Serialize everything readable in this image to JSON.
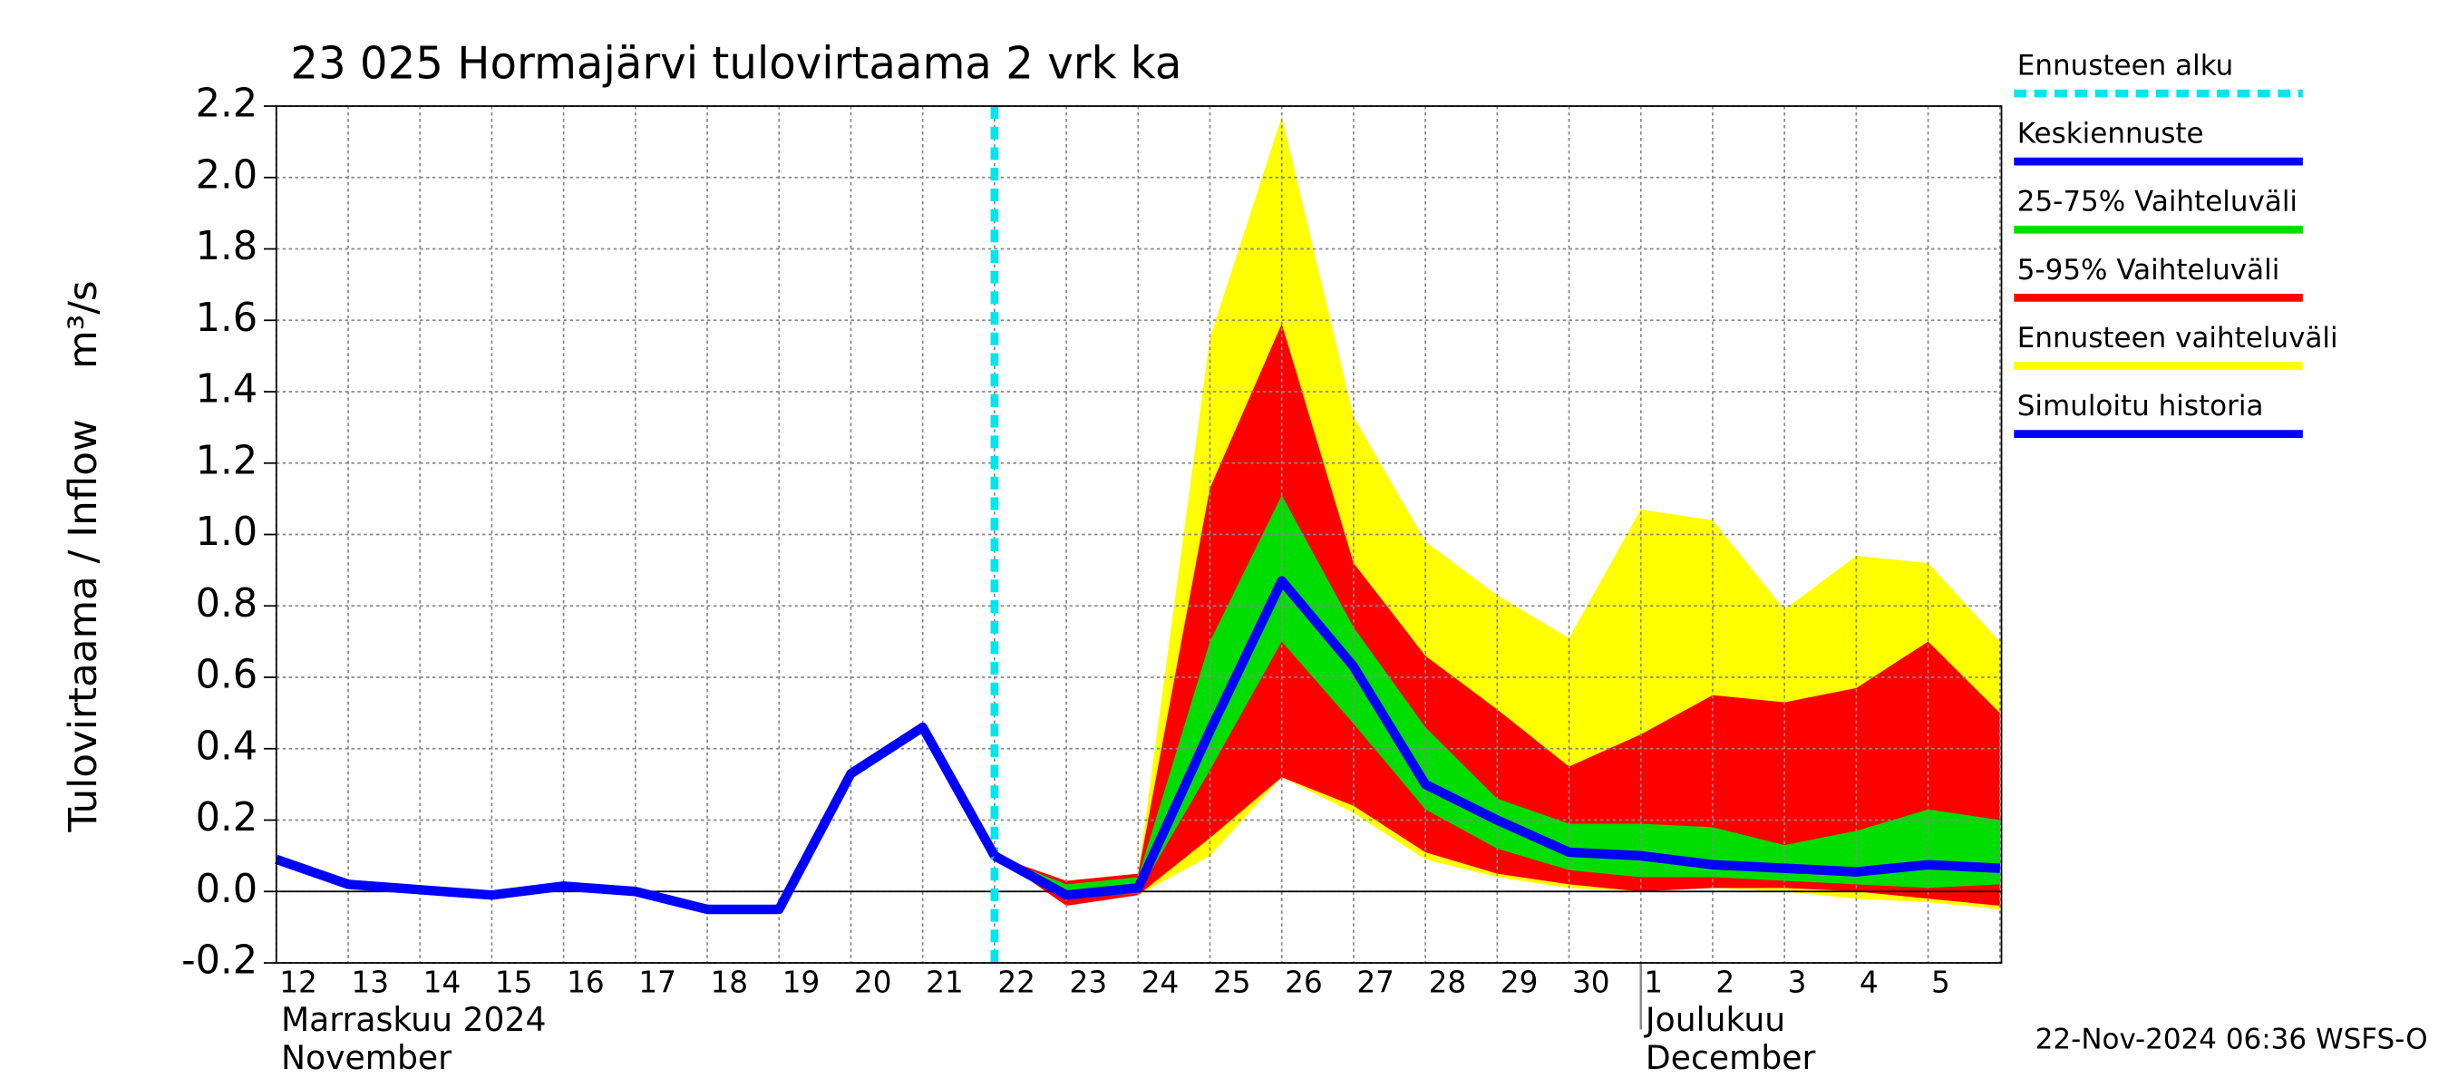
{
  "chart_data": {
    "type": "line",
    "title": "23 025 Hormajärvi tulovirtaama 2 vrk ka",
    "y_label": "Tulovirtaama / Inflow",
    "y_unit": "m³/s",
    "categories": [
      "12",
      "13",
      "14",
      "15",
      "16",
      "17",
      "18",
      "19",
      "20",
      "21",
      "22",
      "23",
      "24",
      "25",
      "26",
      "27",
      "28",
      "29",
      "30",
      "1",
      "2",
      "3",
      "4",
      "5",
      null
    ],
    "month_labels": [
      {
        "at": "12",
        "lines": [
          "Marraskuu 2024",
          "November"
        ]
      },
      {
        "at": "1",
        "lines": [
          "Joulukuu",
          "December"
        ]
      }
    ],
    "ylim": [
      -0.2,
      2.2
    ],
    "yticks": [
      {
        "value": -0.2,
        "label": "-0.2"
      },
      {
        "value": 0,
        "label": "0.0"
      },
      {
        "value": 0.2,
        "label": "0.2"
      },
      {
        "value": 0.4,
        "label": "0.4"
      },
      {
        "value": 0.6,
        "label": "0.6"
      },
      {
        "value": 0.8,
        "label": "0.8"
      },
      {
        "value": 1,
        "label": "1.0"
      },
      {
        "value": 1.2,
        "label": "1.2"
      },
      {
        "value": 1.4,
        "label": "1.4"
      },
      {
        "value": 1.6,
        "label": "1.6"
      },
      {
        "value": 1.8,
        "label": "1.8"
      },
      {
        "value": 2,
        "label": "2.0"
      },
      {
        "value": 2.2,
        "label": "2.2"
      }
    ],
    "grid": true,
    "forecast_start": {
      "name": "Ennusteen alku",
      "color": "#00e5ee",
      "at": "22"
    },
    "bands": [
      {
        "name": "Ennusteen vaihteluväli",
        "color": "#ffff00",
        "upper": [
          null,
          null,
          null,
          null,
          null,
          null,
          null,
          null,
          null,
          null,
          0.1,
          0.03,
          0.05,
          1.55,
          2.17,
          1.33,
          0.98,
          0.83,
          0.71,
          1.07,
          1.04,
          0.79,
          0.94,
          0.92,
          0.7
        ],
        "lower": [
          null,
          null,
          null,
          null,
          null,
          null,
          null,
          null,
          null,
          null,
          0.1,
          -0.03,
          -0.01,
          0.1,
          0.32,
          0.22,
          0.09,
          0.04,
          0.01,
          0.0,
          0.01,
          0.0,
          -0.02,
          -0.03,
          -0.05
        ]
      },
      {
        "name": "5-95% Vaihteluväli",
        "color": "#ff0000",
        "upper": [
          null,
          null,
          null,
          null,
          null,
          null,
          null,
          null,
          null,
          null,
          0.1,
          0.03,
          0.05,
          1.13,
          1.59,
          0.92,
          0.66,
          0.51,
          0.35,
          0.44,
          0.55,
          0.53,
          0.57,
          0.7,
          0.5
        ],
        "lower": [
          null,
          null,
          null,
          null,
          null,
          null,
          null,
          null,
          null,
          null,
          0.1,
          -0.04,
          -0.01,
          0.15,
          0.32,
          0.24,
          0.11,
          0.05,
          0.02,
          0.0,
          0.01,
          0.01,
          0.0,
          -0.02,
          -0.04
        ]
      },
      {
        "name": "25-75% Vaihteluväli",
        "color": "#00dd00",
        "upper": [
          null,
          null,
          null,
          null,
          null,
          null,
          null,
          null,
          null,
          null,
          0.1,
          0.02,
          0.04,
          0.7,
          1.11,
          0.74,
          0.46,
          0.26,
          0.19,
          0.19,
          0.18,
          0.13,
          0.17,
          0.23,
          0.2
        ],
        "lower": [
          null,
          null,
          null,
          null,
          null,
          null,
          null,
          null,
          null,
          null,
          0.1,
          -0.02,
          -0.005,
          0.34,
          0.7,
          0.47,
          0.23,
          0.12,
          0.06,
          0.04,
          0.04,
          0.03,
          0.02,
          0.01,
          0.02
        ]
      }
    ],
    "series": [
      {
        "name": "Simuloitu historia",
        "color": "#0000ff",
        "values": [
          0.09,
          0.02,
          0.005,
          -0.01,
          0.015,
          0.0,
          -0.05,
          -0.05,
          0.33,
          0.46,
          0.1,
          null,
          null,
          null,
          null,
          null,
          null,
          null,
          null,
          null,
          null,
          null,
          null,
          null,
          null
        ]
      },
      {
        "name": "Keskiennuste",
        "color": "#0000ff",
        "values": [
          null,
          null,
          null,
          null,
          null,
          null,
          null,
          null,
          null,
          null,
          0.1,
          -0.01,
          0.01,
          0.45,
          0.87,
          0.63,
          0.3,
          0.2,
          0.11,
          0.1,
          0.075,
          0.065,
          0.055,
          0.075,
          0.065
        ]
      }
    ],
    "timestamp": "22-Nov-2024 06:36 WSFS-O"
  }
}
